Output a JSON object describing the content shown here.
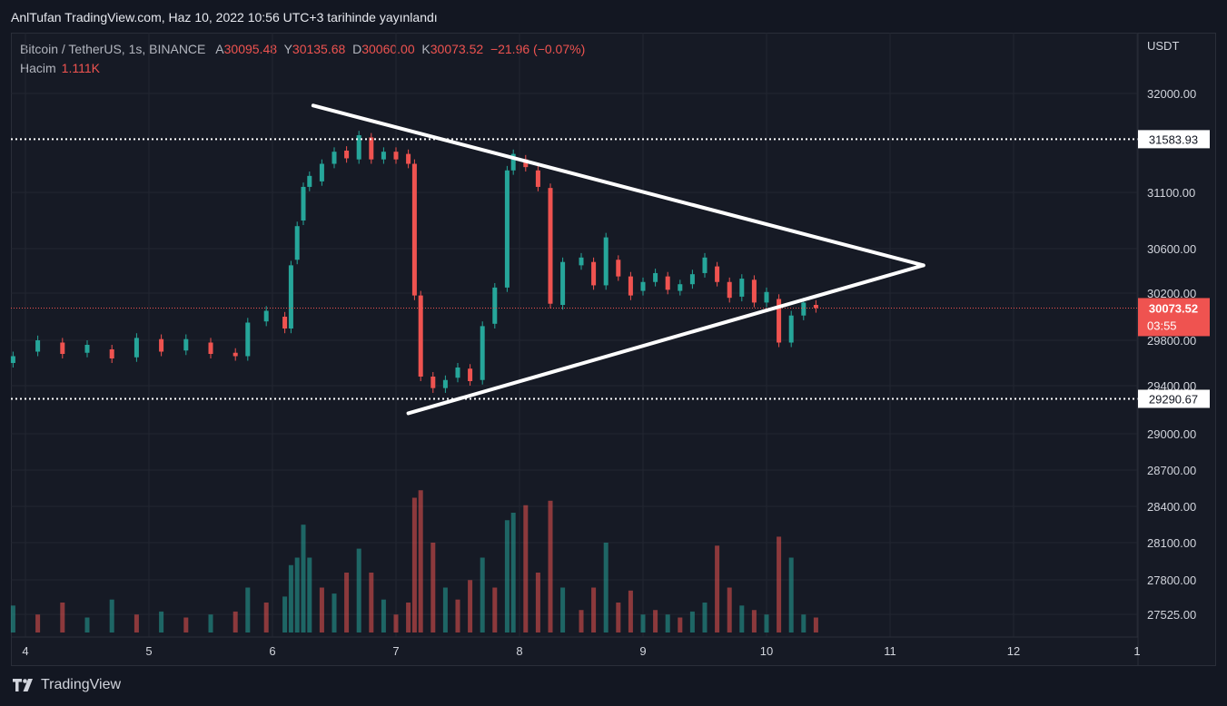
{
  "publisher_line": "AnlTufan TradingView.com, Haz 10, 2022 10:56 UTC+3 tarihinde yayınlandı",
  "legend": {
    "symbol": "Bitcoin / TetherUS, 1s, BINANCE",
    "open_label": "A",
    "open": "30095.48",
    "high_label": "Y",
    "high": "30135.68",
    "low_label": "D",
    "low": "30060.00",
    "close_label": "K",
    "close": "30073.52",
    "change": "−21.96 (−0.07%)",
    "volume_label": "Hacim",
    "volume": "1.111K"
  },
  "footer_brand": "TradingView",
  "colors": {
    "up": "#26a69a",
    "down": "#ef5350",
    "background": "#161a25",
    "grid": "#222631",
    "drawing": "#ffffff"
  },
  "chart_data": {
    "type": "candlestick",
    "y_axis_unit": "USDT",
    "y_ticks": [
      "32000.00",
      "31100.00",
      "30600.00",
      "30200.00",
      "29800.00",
      "29400.00",
      "29000.00",
      "28700.00",
      "28400.00",
      "28100.00",
      "27800.00",
      "27525.00"
    ],
    "x_ticks": [
      "4",
      "5",
      "6",
      "7",
      "8",
      "9",
      "10",
      "11",
      "12",
      "1"
    ],
    "current_price": {
      "value": "30073.52",
      "countdown": "03:55"
    },
    "horizontal_levels": [
      {
        "value": 31583.93,
        "label": "31583.93"
      },
      {
        "value": 29290.67,
        "label": "29290.67"
      }
    ],
    "triangle_pattern": {
      "upper_line": [
        [
          6.33,
          31890
        ],
        [
          11.27,
          30450
        ]
      ],
      "lower_line": [
        [
          7.1,
          29170
        ],
        [
          11.27,
          30450
        ]
      ]
    },
    "price_series": [
      {
        "day": 3.9,
        "open": 29600,
        "close": 29660
      },
      {
        "day": 4.1,
        "open": 29700,
        "close": 29800
      },
      {
        "day": 4.3,
        "open": 29780,
        "close": 29680
      },
      {
        "day": 4.5,
        "open": 29690,
        "close": 29760
      },
      {
        "day": 4.7,
        "open": 29720,
        "close": 29640
      },
      {
        "day": 4.9,
        "open": 29650,
        "close": 29820
      },
      {
        "day": 5.1,
        "open": 29810,
        "close": 29700
      },
      {
        "day": 5.3,
        "open": 29710,
        "close": 29810
      },
      {
        "day": 5.5,
        "open": 29780,
        "close": 29680
      },
      {
        "day": 5.7,
        "open": 29690,
        "close": 29660
      },
      {
        "day": 5.8,
        "open": 29660,
        "close": 29950
      },
      {
        "day": 5.95,
        "open": 29960,
        "close": 30050
      },
      {
        "day": 6.1,
        "open": 30000,
        "close": 29900
      },
      {
        "day": 6.15,
        "open": 29900,
        "close": 30450
      },
      {
        "day": 6.2,
        "open": 30500,
        "close": 30800
      },
      {
        "day": 6.25,
        "open": 30850,
        "close": 31150
      },
      {
        "day": 6.3,
        "open": 31150,
        "close": 31250
      },
      {
        "day": 6.4,
        "open": 31200,
        "close": 31360
      },
      {
        "day": 6.5,
        "open": 31360,
        "close": 31470
      },
      {
        "day": 6.6,
        "open": 31480,
        "close": 31410
      },
      {
        "day": 6.7,
        "open": 31400,
        "close": 31620
      },
      {
        "day": 6.8,
        "open": 31600,
        "close": 31400
      },
      {
        "day": 6.9,
        "open": 31400,
        "close": 31470
      },
      {
        "day": 7.0,
        "open": 31470,
        "close": 31400
      },
      {
        "day": 7.1,
        "open": 31450,
        "close": 31360
      },
      {
        "day": 7.15,
        "open": 31360,
        "close": 30180
      },
      {
        "day": 7.2,
        "open": 30180,
        "close": 29480
      },
      {
        "day": 7.3,
        "open": 29480,
        "close": 29380
      },
      {
        "day": 7.4,
        "open": 29380,
        "close": 29450
      },
      {
        "day": 7.5,
        "open": 29470,
        "close": 29560
      },
      {
        "day": 7.6,
        "open": 29550,
        "close": 29440
      },
      {
        "day": 7.7,
        "open": 29450,
        "close": 29920
      },
      {
        "day": 7.8,
        "open": 29940,
        "close": 30250
      },
      {
        "day": 7.9,
        "open": 30250,
        "close": 31300
      },
      {
        "day": 7.95,
        "open": 31300,
        "close": 31450
      },
      {
        "day": 8.05,
        "open": 31400,
        "close": 31330
      },
      {
        "day": 8.15,
        "open": 31300,
        "close": 31150
      },
      {
        "day": 8.25,
        "open": 31140,
        "close": 30110
      },
      {
        "day": 8.35,
        "open": 30100,
        "close": 30480
      },
      {
        "day": 8.5,
        "open": 30450,
        "close": 30520
      },
      {
        "day": 8.6,
        "open": 30480,
        "close": 30270
      },
      {
        "day": 8.7,
        "open": 30270,
        "close": 30700
      },
      {
        "day": 8.8,
        "open": 30500,
        "close": 30350
      },
      {
        "day": 8.9,
        "open": 30350,
        "close": 30180
      },
      {
        "day": 9.0,
        "open": 30220,
        "close": 30300
      },
      {
        "day": 9.1,
        "open": 30300,
        "close": 30380
      },
      {
        "day": 9.2,
        "open": 30350,
        "close": 30230
      },
      {
        "day": 9.3,
        "open": 30220,
        "close": 30280
      },
      {
        "day": 9.4,
        "open": 30280,
        "close": 30370
      },
      {
        "day": 9.5,
        "open": 30380,
        "close": 30520
      },
      {
        "day": 9.6,
        "open": 30440,
        "close": 30300
      },
      {
        "day": 9.7,
        "open": 30300,
        "close": 30160
      },
      {
        "day": 9.8,
        "open": 30170,
        "close": 30330
      },
      {
        "day": 9.9,
        "open": 30320,
        "close": 30120
      },
      {
        "day": 10.0,
        "open": 30120,
        "close": 30210
      },
      {
        "day": 10.1,
        "open": 30150,
        "close": 29780
      },
      {
        "day": 10.2,
        "open": 29780,
        "close": 30010
      },
      {
        "day": 10.3,
        "open": 30010,
        "close": 30120
      },
      {
        "day": 10.4,
        "open": 30100,
        "close": 30074
      }
    ],
    "volume_series": [
      {
        "day": 3.9,
        "v": 0.18,
        "up": true
      },
      {
        "day": 4.1,
        "v": 0.12,
        "up": false
      },
      {
        "day": 4.3,
        "v": 0.2,
        "up": false
      },
      {
        "day": 4.5,
        "v": 0.1,
        "up": true
      },
      {
        "day": 4.7,
        "v": 0.22,
        "up": true
      },
      {
        "day": 4.9,
        "v": 0.12,
        "up": false
      },
      {
        "day": 5.1,
        "v": 0.14,
        "up": true
      },
      {
        "day": 5.3,
        "v": 0.1,
        "up": false
      },
      {
        "day": 5.5,
        "v": 0.12,
        "up": true
      },
      {
        "day": 5.7,
        "v": 0.14,
        "up": false
      },
      {
        "day": 5.8,
        "v": 0.3,
        "up": true
      },
      {
        "day": 5.95,
        "v": 0.2,
        "up": false
      },
      {
        "day": 6.1,
        "v": 0.24,
        "up": true
      },
      {
        "day": 6.15,
        "v": 0.45,
        "up": true
      },
      {
        "day": 6.2,
        "v": 0.5,
        "up": true
      },
      {
        "day": 6.25,
        "v": 0.72,
        "up": true
      },
      {
        "day": 6.3,
        "v": 0.5,
        "up": true
      },
      {
        "day": 6.4,
        "v": 0.3,
        "up": false
      },
      {
        "day": 6.5,
        "v": 0.26,
        "up": true
      },
      {
        "day": 6.6,
        "v": 0.4,
        "up": false
      },
      {
        "day": 6.7,
        "v": 0.56,
        "up": true
      },
      {
        "day": 6.8,
        "v": 0.4,
        "up": false
      },
      {
        "day": 6.9,
        "v": 0.22,
        "up": true
      },
      {
        "day": 7.0,
        "v": 0.12,
        "up": false
      },
      {
        "day": 7.1,
        "v": 0.2,
        "up": false
      },
      {
        "day": 7.15,
        "v": 0.9,
        "up": false
      },
      {
        "day": 7.2,
        "v": 0.95,
        "up": false
      },
      {
        "day": 7.3,
        "v": 0.6,
        "up": false
      },
      {
        "day": 7.4,
        "v": 0.3,
        "up": true
      },
      {
        "day": 7.5,
        "v": 0.22,
        "up": false
      },
      {
        "day": 7.6,
        "v": 0.35,
        "up": false
      },
      {
        "day": 7.7,
        "v": 0.5,
        "up": true
      },
      {
        "day": 7.8,
        "v": 0.3,
        "up": false
      },
      {
        "day": 7.9,
        "v": 0.75,
        "up": true
      },
      {
        "day": 7.95,
        "v": 0.8,
        "up": true
      },
      {
        "day": 8.05,
        "v": 0.85,
        "up": false
      },
      {
        "day": 8.15,
        "v": 0.4,
        "up": false
      },
      {
        "day": 8.25,
        "v": 0.88,
        "up": false
      },
      {
        "day": 8.35,
        "v": 0.3,
        "up": true
      },
      {
        "day": 8.5,
        "v": 0.15,
        "up": false
      },
      {
        "day": 8.6,
        "v": 0.3,
        "up": false
      },
      {
        "day": 8.7,
        "v": 0.6,
        "up": true
      },
      {
        "day": 8.8,
        "v": 0.2,
        "up": false
      },
      {
        "day": 8.9,
        "v": 0.28,
        "up": false
      },
      {
        "day": 9.0,
        "v": 0.12,
        "up": true
      },
      {
        "day": 9.1,
        "v": 0.15,
        "up": false
      },
      {
        "day": 9.2,
        "v": 0.12,
        "up": true
      },
      {
        "day": 9.3,
        "v": 0.1,
        "up": false
      },
      {
        "day": 9.4,
        "v": 0.14,
        "up": true
      },
      {
        "day": 9.5,
        "v": 0.2,
        "up": true
      },
      {
        "day": 9.6,
        "v": 0.58,
        "up": false
      },
      {
        "day": 9.7,
        "v": 0.3,
        "up": false
      },
      {
        "day": 9.8,
        "v": 0.18,
        "up": true
      },
      {
        "day": 9.9,
        "v": 0.15,
        "up": false
      },
      {
        "day": 10.0,
        "v": 0.12,
        "up": true
      },
      {
        "day": 10.1,
        "v": 0.64,
        "up": false
      },
      {
        "day": 10.2,
        "v": 0.5,
        "up": true
      },
      {
        "day": 10.3,
        "v": 0.12,
        "up": true
      },
      {
        "day": 10.4,
        "v": 0.1,
        "up": false
      }
    ]
  }
}
